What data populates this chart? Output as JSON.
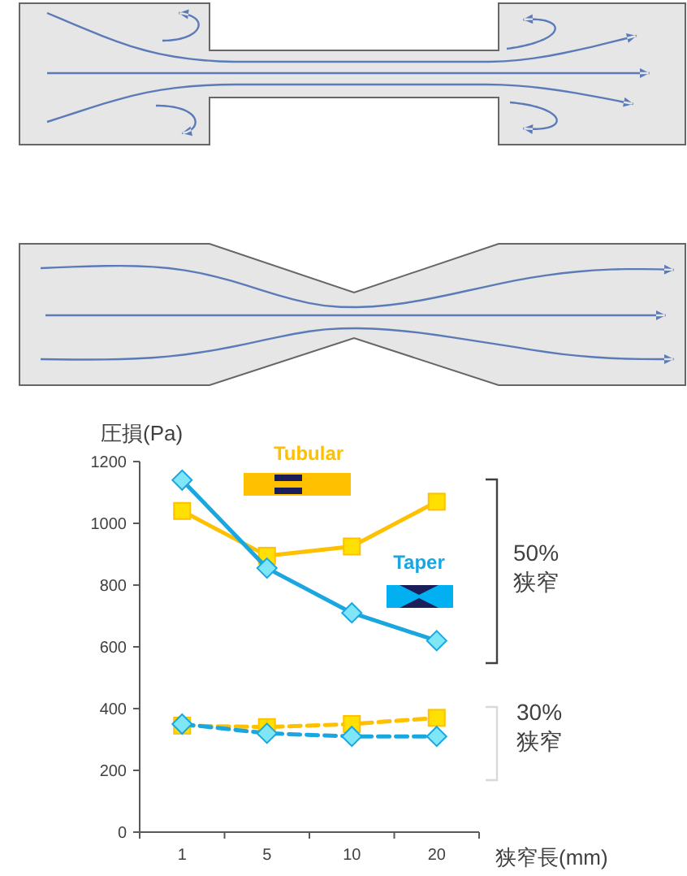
{
  "chart_data": {
    "type": "line",
    "ylabel": "圧損(Pa)",
    "xlabel": "狭窄長(mm)",
    "categories": [
      "1",
      "5",
      "10",
      "20"
    ],
    "ylim": [
      0,
      1200
    ],
    "yticks": [
      0,
      200,
      400,
      600,
      800,
      1000,
      1200
    ],
    "grid": false,
    "series": [
      {
        "name": "Tubular",
        "color": "#ffc000",
        "marker": "square",
        "line_style": "solid",
        "values": [
          1040,
          895,
          925,
          1070
        ]
      },
      {
        "name": "Taper",
        "color": "#1aa7e0",
        "marker": "diamond",
        "line_style": "solid",
        "values": [
          1140,
          855,
          710,
          620
        ]
      },
      {
        "color": "#ffc000",
        "marker": "square",
        "line_style": "dashed",
        "values": [
          345,
          340,
          350,
          370
        ]
      },
      {
        "color": "#1aa7e0",
        "marker": "diamond",
        "line_style": "dashed",
        "values": [
          350,
          320,
          310,
          310
        ]
      }
    ],
    "annotations": [
      "50% 狭窄",
      "30% 狭窄"
    ]
  }
}
